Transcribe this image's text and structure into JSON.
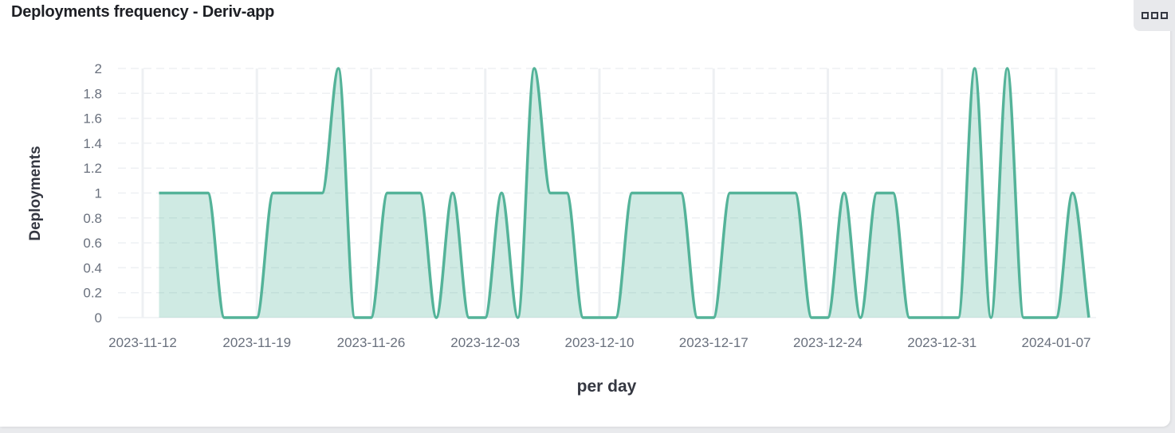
{
  "panel": {
    "title": "Deployments frequency - Deriv-app",
    "menu_icon": "options-menu-icon"
  },
  "colors": {
    "line": "#54b399",
    "fill": "#54b399",
    "grid": "#eef0f3",
    "axis_text": "#69707d"
  },
  "chart_data": {
    "type": "area",
    "title": "Deployments frequency - Deriv-app",
    "xlabel": "per day",
    "ylabel": "Deployments",
    "ylim": [
      0,
      2
    ],
    "y_ticks": [
      "0",
      "0.2",
      "0.4",
      "0.6",
      "0.8",
      "1",
      "1.2",
      "1.4",
      "1.6",
      "1.8",
      "2"
    ],
    "x_ticks": [
      "2023-11-12",
      "2023-11-19",
      "2023-11-26",
      "2023-12-03",
      "2023-12-10",
      "2023-12-17",
      "2023-12-24",
      "2023-12-31",
      "2024-01-07"
    ],
    "grid": true,
    "legend": false,
    "x": [
      "2023-11-13",
      "2023-11-14",
      "2023-11-15",
      "2023-11-16",
      "2023-11-17",
      "2023-11-18",
      "2023-11-19",
      "2023-11-20",
      "2023-11-21",
      "2023-11-22",
      "2023-11-23",
      "2023-11-24",
      "2023-11-25",
      "2023-11-26",
      "2023-11-27",
      "2023-11-28",
      "2023-11-29",
      "2023-11-30",
      "2023-12-01",
      "2023-12-02",
      "2023-12-03",
      "2023-12-04",
      "2023-12-05",
      "2023-12-06",
      "2023-12-07",
      "2023-12-08",
      "2023-12-09",
      "2023-12-10",
      "2023-12-11",
      "2023-12-12",
      "2023-12-13",
      "2023-12-14",
      "2023-12-15",
      "2023-12-16",
      "2023-12-17",
      "2023-12-18",
      "2023-12-19",
      "2023-12-20",
      "2023-12-21",
      "2023-12-22",
      "2023-12-23",
      "2023-12-24",
      "2023-12-25",
      "2023-12-26",
      "2023-12-27",
      "2023-12-28",
      "2023-12-29",
      "2023-12-30",
      "2023-12-31",
      "2024-01-01",
      "2024-01-02",
      "2024-01-03",
      "2024-01-04",
      "2024-01-05",
      "2024-01-06",
      "2024-01-07",
      "2024-01-08",
      "2024-01-09"
    ],
    "series": [
      {
        "name": "Deployments",
        "values": [
          1,
          1,
          1,
          1,
          0,
          0,
          0,
          1,
          1,
          1,
          1,
          2,
          0,
          0,
          1,
          1,
          1,
          0,
          1,
          0,
          0,
          1,
          0,
          2,
          1,
          1,
          0,
          0,
          0,
          1,
          1,
          1,
          1,
          0,
          0,
          1,
          1,
          1,
          1,
          1,
          0,
          0,
          1,
          0,
          1,
          1,
          0,
          0,
          0,
          0,
          2,
          0,
          2,
          0,
          0,
          0,
          1,
          0
        ]
      }
    ]
  }
}
